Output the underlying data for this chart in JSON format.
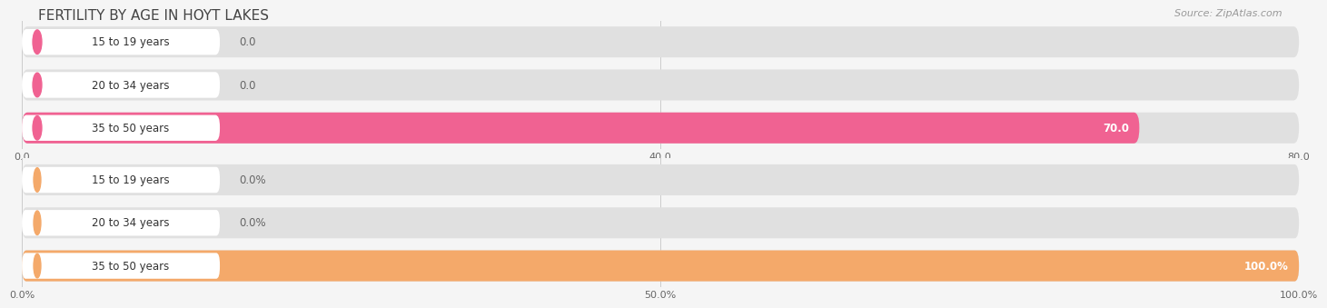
{
  "title": "FERTILITY BY AGE IN HOYT LAKES",
  "source_text": "Source: ZipAtlas.com",
  "fig_bg": "#f5f5f5",
  "top_chart": {
    "categories": [
      "15 to 19 years",
      "20 to 34 years",
      "35 to 50 years"
    ],
    "values": [
      0.0,
      0.0,
      70.0
    ],
    "xmax": 80.0,
    "xticks": [
      0.0,
      40.0,
      80.0
    ],
    "bar_color": "#f06292",
    "bar_bg_color": "#e0e0e0",
    "label_bg": "#ffffff",
    "value_color_inside": "#ffffff",
    "value_color_outside": "#666666"
  },
  "bottom_chart": {
    "categories": [
      "15 to 19 years",
      "20 to 34 years",
      "35 to 50 years"
    ],
    "values": [
      0.0,
      0.0,
      100.0
    ],
    "xmax": 100.0,
    "xticks": [
      0.0,
      50.0,
      100.0
    ],
    "bar_color": "#f4a96a",
    "bar_bg_color": "#e0e0e0",
    "label_bg": "#ffffff",
    "value_color_inside": "#ffffff",
    "value_color_outside": "#666666"
  }
}
